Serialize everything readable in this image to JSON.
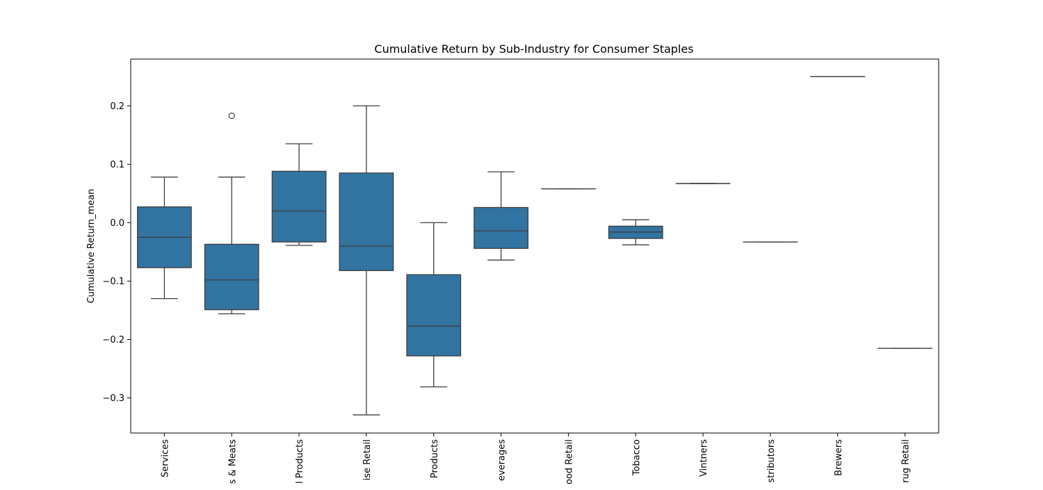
{
  "chart_data": {
    "type": "box",
    "title": "Cumulative Return by Sub-Industry for Consumer Staples",
    "xlabel": "",
    "ylabel": "Cumulative Return_mean",
    "ylim": [
      -0.36,
      0.28
    ],
    "yticks": [
      -0.3,
      -0.2,
      -0.1,
      0.0,
      0.1,
      0.2
    ],
    "ytick_labels": [
      "−0.3",
      "−0.2",
      "−0.1",
      "0.0",
      "0.1",
      "0.2"
    ],
    "box_color": "#3274a1",
    "edge_color": "#3d3d3d",
    "categories": [
      " Services",
      "s & Meats",
      "l Products",
      "ise Retail",
      "Products",
      "everages",
      "ood Retail",
      "Tobacco",
      "Vintners",
      "stributors",
      "Brewers",
      "rug Retail"
    ],
    "boxes": [
      {
        "whisker_low": -0.13,
        "q1": -0.077,
        "median": -0.025,
        "q3": 0.027,
        "whisker_high": 0.078,
        "outliers": []
      },
      {
        "whisker_low": -0.156,
        "q1": -0.149,
        "median": -0.098,
        "q3": -0.037,
        "whisker_high": 0.078,
        "outliers": [
          0.183
        ]
      },
      {
        "whisker_low": -0.039,
        "q1": -0.033,
        "median": 0.02,
        "q3": 0.088,
        "whisker_high": 0.135,
        "outliers": []
      },
      {
        "whisker_low": -0.329,
        "q1": -0.082,
        "median": -0.04,
        "q3": 0.085,
        "whisker_high": 0.2,
        "outliers": []
      },
      {
        "whisker_low": -0.281,
        "q1": -0.228,
        "median": -0.177,
        "q3": -0.089,
        "whisker_high": 0.0,
        "outliers": []
      },
      {
        "whisker_low": -0.064,
        "q1": -0.044,
        "median": -0.014,
        "q3": 0.026,
        "whisker_high": 0.087,
        "outliers": []
      },
      {
        "whisker_low": 0.058,
        "q1": 0.058,
        "median": 0.058,
        "q3": 0.058,
        "whisker_high": 0.058,
        "outliers": []
      },
      {
        "whisker_low": -0.038,
        "q1": -0.027,
        "median": -0.016,
        "q3": -0.006,
        "whisker_high": 0.005,
        "outliers": []
      },
      {
        "whisker_low": 0.067,
        "q1": 0.067,
        "median": 0.067,
        "q3": 0.067,
        "whisker_high": 0.067,
        "outliers": []
      },
      {
        "whisker_low": -0.033,
        "q1": -0.033,
        "median": -0.033,
        "q3": -0.033,
        "whisker_high": -0.033,
        "outliers": []
      },
      {
        "whisker_low": 0.25,
        "q1": 0.25,
        "median": 0.25,
        "q3": 0.25,
        "whisker_high": 0.25,
        "outliers": []
      },
      {
        "whisker_low": -0.215,
        "q1": -0.215,
        "median": -0.215,
        "q3": -0.215,
        "whisker_high": -0.215,
        "outliers": []
      }
    ],
    "grid": false,
    "legend": "none"
  }
}
